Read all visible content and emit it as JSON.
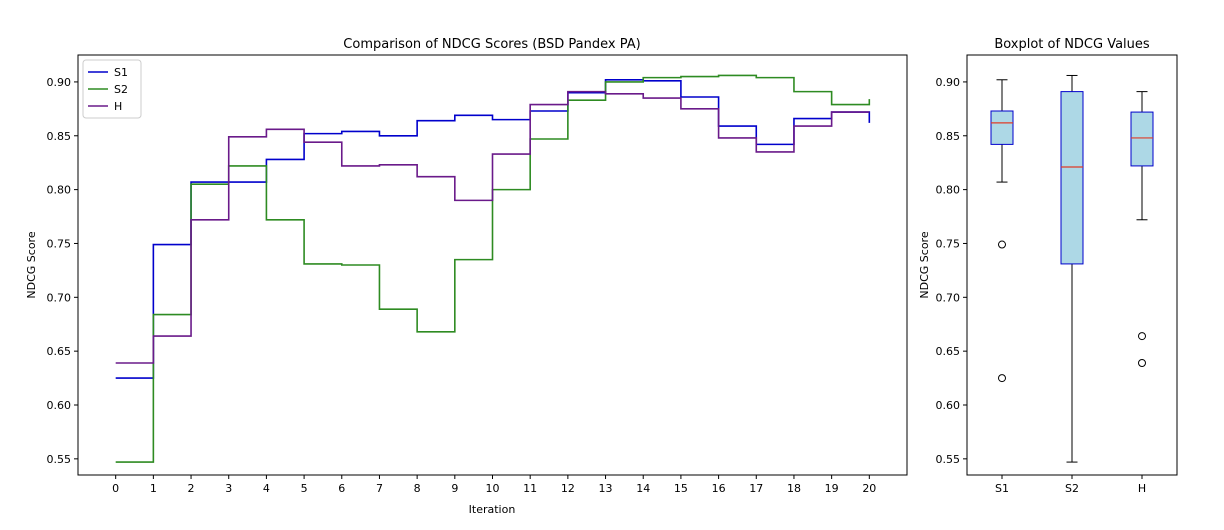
{
  "chart_data": [
    {
      "type": "line",
      "step": "post",
      "title": "Comparison of NDCG Scores (BSD Pandex PA)",
      "xlabel": "Iteration",
      "ylabel": "NDCG Score",
      "xlim": [
        -1,
        21
      ],
      "ylim": [
        0.535,
        0.925
      ],
      "xticks": [
        0,
        1,
        2,
        3,
        4,
        5,
        6,
        7,
        8,
        9,
        10,
        11,
        12,
        13,
        14,
        15,
        16,
        17,
        18,
        19,
        20
      ],
      "yticks": [
        0.55,
        0.6,
        0.65,
        0.7,
        0.75,
        0.8,
        0.85,
        0.9
      ],
      "ytick_labels": [
        "0.55",
        "0.60",
        "0.65",
        "0.70",
        "0.75",
        "0.80",
        "0.85",
        "0.90"
      ],
      "grid": false,
      "legend_position": "upper-left",
      "x": [
        0,
        1,
        2,
        3,
        4,
        5,
        6,
        7,
        8,
        9,
        10,
        11,
        12,
        13,
        14,
        15,
        16,
        17,
        18,
        19,
        20
      ],
      "series": [
        {
          "name": "S1",
          "color": "#0000cc",
          "values": [
            0.625,
            0.749,
            0.807,
            0.807,
            0.828,
            0.852,
            0.854,
            0.85,
            0.864,
            0.869,
            0.865,
            0.873,
            0.89,
            0.902,
            0.901,
            0.886,
            0.859,
            0.842,
            0.866,
            0.872,
            0.862
          ]
        },
        {
          "name": "S2",
          "color": "#2e8b22",
          "values": [
            0.547,
            0.684,
            0.805,
            0.822,
            0.772,
            0.731,
            0.73,
            0.689,
            0.668,
            0.735,
            0.8,
            0.847,
            0.883,
            0.9,
            0.904,
            0.905,
            0.906,
            0.904,
            0.891,
            0.879,
            0.884
          ]
        },
        {
          "name": "H",
          "color": "#6a1a8a",
          "values": [
            0.639,
            0.664,
            0.772,
            0.849,
            0.856,
            0.844,
            0.822,
            0.823,
            0.812,
            0.79,
            0.833,
            0.879,
            0.891,
            0.889,
            0.885,
            0.875,
            0.848,
            0.835,
            0.859,
            0.872,
            0.872
          ]
        }
      ]
    },
    {
      "type": "box",
      "title": "Boxplot of NDCG Values",
      "xlabel": "",
      "ylabel": "NDCG Score",
      "ylim": [
        0.535,
        0.925
      ],
      "yticks": [
        0.55,
        0.6,
        0.65,
        0.7,
        0.75,
        0.8,
        0.85,
        0.9
      ],
      "ytick_labels": [
        "0.55",
        "0.60",
        "0.65",
        "0.70",
        "0.75",
        "0.80",
        "0.85",
        "0.90"
      ],
      "box_fill": "#add8e6",
      "box_edge": "#0000cc",
      "median_color": "#e03c28",
      "categories": [
        "S1",
        "S2",
        "H"
      ],
      "boxes": [
        {
          "label": "S1",
          "whisker_low": 0.807,
          "q1": 0.842,
          "median": 0.862,
          "q3": 0.873,
          "whisker_high": 0.902,
          "outliers": [
            0.749,
            0.625
          ]
        },
        {
          "label": "S2",
          "whisker_low": 0.547,
          "q1": 0.731,
          "median": 0.821,
          "q3": 0.891,
          "whisker_high": 0.906,
          "outliers": []
        },
        {
          "label": "H",
          "whisker_low": 0.772,
          "q1": 0.822,
          "median": 0.848,
          "q3": 0.872,
          "whisker_high": 0.891,
          "outliers": [
            0.664,
            0.639
          ]
        }
      ]
    }
  ]
}
